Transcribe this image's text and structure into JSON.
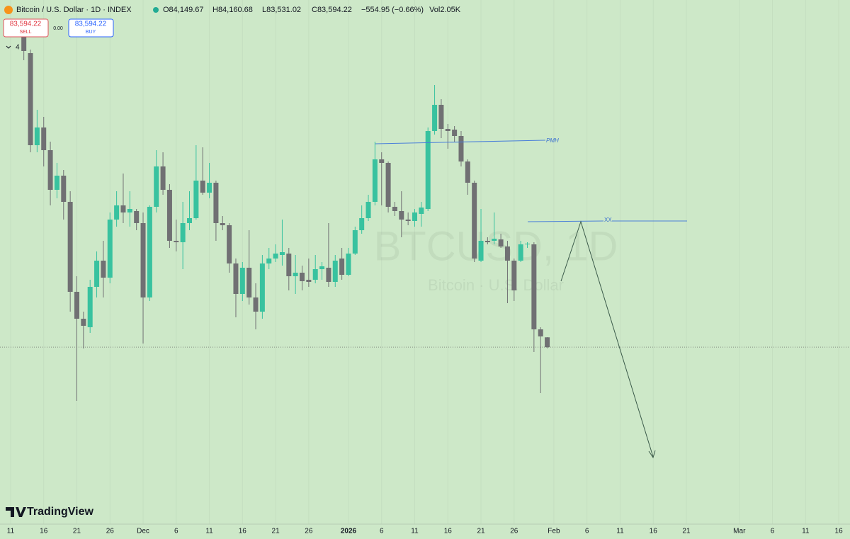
{
  "header": {
    "symbol": "Bitcoin / U.S. Dollar · 1D · INDEX",
    "open": "O84,149.67",
    "high": "H84,160.68",
    "low": "L83,531.02",
    "close": "C83,594.22",
    "change": "−554.95 (−0.66%)",
    "volume": "Vol2.05K",
    "sell_price": "83,594.22",
    "sell": "SELL",
    "spread": "0.00",
    "buy_price": "83,594.22",
    "buy": "BUY",
    "indicators": "4"
  },
  "logo": "TradingView",
  "watermark": {
    "symbol": "BTCUSD, 1D",
    "description": "Bitcoin · U.S. Dollar"
  },
  "annotations": {
    "pmh": "PMH",
    "xx": "XX"
  },
  "chart_data": {
    "type": "candlestick",
    "up_color": "#38c29f",
    "down_color": "#707073",
    "x": [
      2,
      3,
      4,
      5,
      6,
      7,
      8,
      9,
      10,
      11,
      12,
      13,
      14,
      15,
      16,
      17,
      18,
      19,
      20,
      21,
      22,
      23,
      24,
      25,
      26,
      27,
      28,
      29,
      30,
      31,
      32,
      33,
      34,
      35,
      36,
      37,
      38,
      39,
      40,
      41,
      42,
      43,
      44,
      45,
      46,
      47,
      48,
      49,
      50,
      51,
      52,
      53,
      54,
      55,
      56,
      57,
      58,
      59,
      60,
      61,
      62,
      63,
      64,
      65,
      66,
      67,
      68,
      69,
      70,
      71,
      72,
      73,
      74,
      75,
      76,
      77,
      78,
      79,
      80,
      81
    ],
    "open": [
      101200,
      100200,
      95000,
      96000,
      94720,
      92480,
      93280,
      91800,
      86720,
      85200,
      84720,
      87000,
      88480,
      87520,
      90800,
      91600,
      91200,
      91280,
      90600,
      86400,
      91520,
      93800,
      92480,
      89600,
      89520,
      90600,
      90880,
      93000,
      92320,
      92880,
      90600,
      90480,
      88320,
      86600,
      88080,
      86400,
      85600,
      88320,
      88600,
      88800,
      88880,
      87600,
      87800,
      87400,
      87400,
      88000,
      88080,
      87280,
      88600,
      87680,
      88880,
      90200,
      90880,
      91800,
      94200,
      94000,
      91520,
      91280,
      90800,
      90720,
      91120,
      91400,
      95800,
      97280,
      95920,
      95880,
      95520,
      94080,
      92880,
      88480,
      89600,
      89600,
      89680,
      89280,
      88480,
      88480,
      89400,
      89400,
      84600,
      84149.67
    ],
    "high": [
      101400,
      100400,
      97000,
      96600,
      95200,
      94000,
      93600,
      92400,
      87600,
      85600,
      87400,
      89000,
      89600,
      91200,
      92400,
      93400,
      92400,
      91400,
      91200,
      91600,
      94720,
      94600,
      92800,
      90800,
      91800,
      92400,
      95000,
      94880,
      94000,
      93000,
      91000,
      90600,
      88600,
      88400,
      90200,
      87200,
      88800,
      89200,
      89400,
      90800,
      89200,
      88800,
      88200,
      88600,
      88800,
      88400,
      90600,
      88800,
      89200,
      89200,
      90400,
      91600,
      92200,
      95200,
      94600,
      94080,
      91800,
      92400,
      91200,
      91400,
      91800,
      96000,
      98400,
      97600,
      96200,
      96080,
      95800,
      94200,
      93000,
      91400,
      89800,
      91200,
      90000,
      89600,
      88600,
      89600,
      89520,
      89520,
      84720,
      84160.68
    ],
    "low": [
      99800,
      94600,
      94600,
      93800,
      91600,
      92000,
      90800,
      85600,
      80560,
      83520,
      84400,
      86400,
      86400,
      87200,
      90400,
      90600,
      90400,
      90200,
      83800,
      86200,
      91200,
      92200,
      89200,
      89000,
      88000,
      90200,
      90800,
      92200,
      92000,
      89600,
      90200,
      87800,
      85280,
      86200,
      86000,
      84600,
      85200,
      88000,
      88400,
      88200,
      86800,
      86600,
      86800,
      87000,
      87200,
      87400,
      87000,
      87000,
      87400,
      87600,
      88800,
      90000,
      90720,
      91600,
      91600,
      91200,
      91000,
      89800,
      90480,
      90400,
      90400,
      91280,
      95600,
      95400,
      94800,
      95200,
      93800,
      92200,
      88400,
      88400,
      89400,
      89400,
      89200,
      86080,
      86200,
      88400,
      89200,
      83320,
      81000,
      83531.02
    ],
    "close": [
      100320,
      95000,
      96000,
      94720,
      92480,
      93280,
      91800,
      86720,
      85200,
      84800,
      87000,
      88480,
      87520,
      90800,
      91600,
      91200,
      91400,
      90600,
      86400,
      91520,
      93800,
      92480,
      89600,
      89520,
      90600,
      90880,
      93000,
      92320,
      92880,
      90600,
      90480,
      88320,
      86600,
      88080,
      86400,
      85600,
      88320,
      88600,
      88880,
      88960,
      87600,
      87800,
      87320,
      87280,
      88000,
      88160,
      87280,
      88480,
      87680,
      88880,
      90200,
      90880,
      91800,
      94200,
      94000,
      91520,
      91280,
      90800,
      90720,
      91200,
      91480,
      95800,
      97280,
      95920,
      95800,
      95520,
      94080,
      92880,
      88600,
      89600,
      89520,
      89720,
      89280,
      88480,
      86800,
      89400,
      89440,
      84600,
      84200,
      83594.22
    ],
    "xlim": [
      -1.6,
      126.7
    ],
    "ylim": [
      73600,
      103200
    ],
    "xticks": [
      {
        "value": 0,
        "label": "11"
      },
      {
        "value": 5,
        "label": "16"
      },
      {
        "value": 10,
        "label": "21"
      },
      {
        "value": 15,
        "label": "26"
      },
      {
        "value": 20,
        "label": "Dec"
      },
      {
        "value": 25,
        "label": "6"
      },
      {
        "value": 30,
        "label": "11"
      },
      {
        "value": 35,
        "label": "16"
      },
      {
        "value": 40,
        "label": "21"
      },
      {
        "value": 45,
        "label": "26"
      },
      {
        "value": 51,
        "label": "2026"
      },
      {
        "value": 56,
        "label": "6"
      },
      {
        "value": 61,
        "label": "11"
      },
      {
        "value": 66,
        "label": "16"
      },
      {
        "value": 71,
        "label": "21"
      },
      {
        "value": 76,
        "label": "26"
      },
      {
        "value": 82,
        "label": "Feb"
      },
      {
        "value": 87,
        "label": "6"
      },
      {
        "value": 92,
        "label": "11"
      },
      {
        "value": 97,
        "label": "16"
      },
      {
        "value": 102,
        "label": "21"
      },
      {
        "value": 110,
        "label": "Mar"
      },
      {
        "value": 115,
        "label": "6"
      },
      {
        "value": 120,
        "label": "11"
      },
      {
        "value": 125,
        "label": "16"
      }
    ],
    "grid": true
  }
}
